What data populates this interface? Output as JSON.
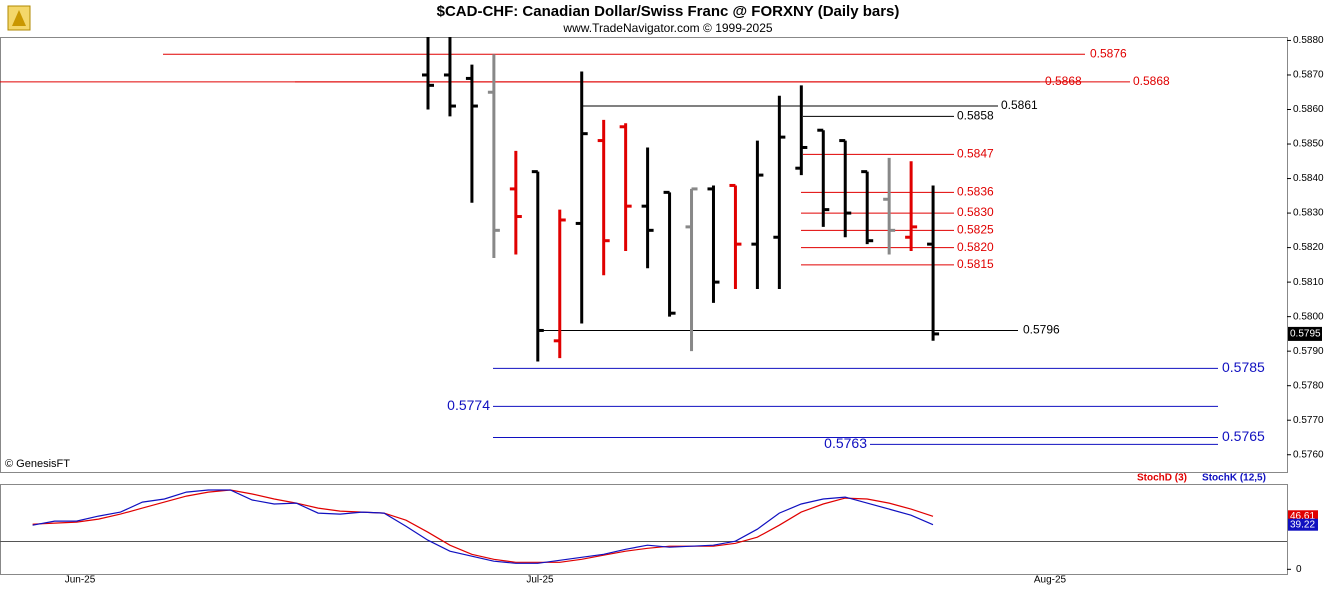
{
  "header": {
    "title": "$CAD-CHF:  Canadian Dollar/Swiss Franc @ FORXNY  (Daily bars)",
    "subtitle": "www.TradeNavigator.com © 1999-2025"
  },
  "watermark": "© GenesisFT",
  "x_axis_labels": [
    "Jun-25",
    "Jul-25",
    "Aug-25"
  ],
  "chart_data": [
    {
      "type": "ohlc",
      "ylim": [
        0.5755,
        0.5881
      ],
      "yticks": [
        {
          "value": 0.588,
          "label": "0.5880"
        },
        {
          "value": 0.587,
          "label": "0.5870"
        },
        {
          "value": 0.586,
          "label": "0.5860"
        },
        {
          "value": 0.585,
          "label": "0.5850"
        },
        {
          "value": 0.584,
          "label": "0.5840"
        },
        {
          "value": 0.583,
          "label": "0.5830"
        },
        {
          "value": 0.582,
          "label": "0.5820"
        },
        {
          "value": 0.581,
          "label": "0.5810"
        },
        {
          "value": 0.58,
          "label": "0.5800"
        },
        {
          "value": 0.579,
          "label": "0.5790"
        },
        {
          "value": 0.578,
          "label": "0.5780"
        },
        {
          "value": 0.577,
          "label": "0.5770"
        },
        {
          "value": 0.576,
          "label": "0.5760"
        }
      ],
      "bars": [
        {
          "open": 0.587,
          "high": 0.5881,
          "low": 0.586,
          "close": 0.5867,
          "color": "#000000"
        },
        {
          "open": 0.587,
          "high": 0.5881,
          "low": 0.5858,
          "close": 0.5861,
          "color": "#000000"
        },
        {
          "open": 0.5869,
          "high": 0.5873,
          "low": 0.5833,
          "close": 0.5861,
          "color": "#000000"
        },
        {
          "open": 0.5865,
          "high": 0.5876,
          "low": 0.5817,
          "close": 0.5825,
          "color": "#888888"
        },
        {
          "open": 0.5837,
          "high": 0.5848,
          "low": 0.5818,
          "close": 0.5829,
          "color": "#e00000"
        },
        {
          "open": 0.5842,
          "high": 0.5842,
          "low": 0.5787,
          "close": 0.5796,
          "color": "#000000"
        },
        {
          "open": 0.5793,
          "high": 0.5831,
          "low": 0.5788,
          "close": 0.5828,
          "color": "#e00000"
        },
        {
          "open": 0.5827,
          "high": 0.5871,
          "low": 0.5798,
          "close": 0.5853,
          "color": "#000000"
        },
        {
          "open": 0.5851,
          "high": 0.5857,
          "low": 0.5812,
          "close": 0.5822,
          "color": "#e00000"
        },
        {
          "open": 0.5855,
          "high": 0.5856,
          "low": 0.5819,
          "close": 0.5832,
          "color": "#e00000"
        },
        {
          "open": 0.5832,
          "high": 0.5849,
          "low": 0.5814,
          "close": 0.5825,
          "color": "#000000"
        },
        {
          "open": 0.5836,
          "high": 0.5836,
          "low": 0.58,
          "close": 0.5801,
          "color": "#000000"
        },
        {
          "open": 0.5826,
          "high": 0.5837,
          "low": 0.579,
          "close": 0.5837,
          "color": "#888888"
        },
        {
          "open": 0.5837,
          "high": 0.5838,
          "low": 0.5804,
          "close": 0.581,
          "color": "#000000"
        },
        {
          "open": 0.5838,
          "high": 0.5838,
          "low": 0.5808,
          "close": 0.5821,
          "color": "#e00000"
        },
        {
          "open": 0.5821,
          "high": 0.5851,
          "low": 0.5808,
          "close": 0.5841,
          "color": "#000000"
        },
        {
          "open": 0.5823,
          "high": 0.5864,
          "low": 0.5808,
          "close": 0.5852,
          "color": "#000000"
        },
        {
          "open": 0.5843,
          "high": 0.5867,
          "low": 0.5841,
          "close": 0.5849,
          "color": "#000000"
        },
        {
          "open": 0.5854,
          "high": 0.5854,
          "low": 0.5826,
          "close": 0.5831,
          "color": "#000000"
        },
        {
          "open": 0.5851,
          "high": 0.5851,
          "low": 0.5823,
          "close": 0.583,
          "color": "#000000"
        },
        {
          "open": 0.5842,
          "high": 0.5842,
          "low": 0.5821,
          "close": 0.5822,
          "color": "#000000"
        },
        {
          "open": 0.5834,
          "high": 0.5846,
          "low": 0.5818,
          "close": 0.5825,
          "color": "#888888"
        },
        {
          "open": 0.5823,
          "high": 0.5845,
          "low": 0.5819,
          "close": 0.5826,
          "color": "#e00000"
        },
        {
          "open": 0.5821,
          "high": 0.5838,
          "low": 0.5793,
          "close": 0.5795,
          "color": "#000000"
        }
      ],
      "levels": [
        {
          "value": 0.5876,
          "color": "#e00000"
        },
        {
          "value": 0.5868,
          "color": "#e00000"
        },
        {
          "value": 0.5868,
          "color": "#e00000"
        },
        {
          "value": 0.5861,
          "color": "#000000"
        },
        {
          "value": 0.5858,
          "color": "#000000"
        },
        {
          "value": 0.5847,
          "color": "#e00000"
        },
        {
          "value": 0.5836,
          "color": "#e00000"
        },
        {
          "value": {
            "value": 0.583,
            "label": "0.5830"
          },
          "color": "#e00000"
        },
        {
          "value": 0.5825,
          "color": "#e00000"
        },
        {
          "value": {
            "value": 0.582,
            "label": "0.5820"
          },
          "color": "#e00000"
        },
        {
          "value": 0.5815,
          "color": "#e00000"
        },
        {
          "value": 0.5796,
          "color": "#000000"
        },
        {
          "value": 0.5785,
          "color": "#1010c0"
        },
        {
          "value": 0.5774,
          "color": "#1010c0"
        },
        {
          "value": 0.5765,
          "color": "#1010c0"
        },
        {
          "value": 0.5763,
          "color": "#1010c0"
        }
      ]
    },
    {
      "type": "line",
      "ylim": [
        -5,
        75
      ],
      "yticks": [
        0
      ],
      "series": [
        {
          "name": "StochD (3)",
          "color": "#e00000",
          "values": [
            39.7,
            40.6,
            41.5,
            44.1,
            48.5,
            53.8,
            59.1,
            64.4,
            67.9,
            69.7,
            66.2,
            61.8,
            58.2,
            53.8,
            51.2,
            50.3,
            49.4,
            43.2,
            32.6,
            21.2,
            13.2,
            8.8,
            6.2,
            6.2,
            6.2,
            8.8,
            12.4,
            15.9,
            18.5,
            20.3,
            20.3,
            20.3,
            22.9,
            28.2,
            38.8,
            50.3,
            57.4,
            62.6,
            61.8,
            58.2,
            52.9,
            46.61
          ]
        },
        {
          "name": "StochK (12,5)",
          "color": "#1010c0",
          "values": [
            38.8,
            42.4,
            42.4,
            46.8,
            50.3,
            59.1,
            61.8,
            67.9,
            69.7,
            69.7,
            60.9,
            57.4,
            58.2,
            49.4,
            48.5,
            50.3,
            49.4,
            37.9,
            25.6,
            15.9,
            11.5,
            7.1,
            5.3,
            5.3,
            7.9,
            10.6,
            13.2,
            17.6,
            21.2,
            19.4,
            20.3,
            21.2,
            24.7,
            35.3,
            49.4,
            57.4,
            61.8,
            63.5,
            58.2,
            52.9,
            47.6,
            39.22
          ]
        }
      ]
    }
  ]
}
